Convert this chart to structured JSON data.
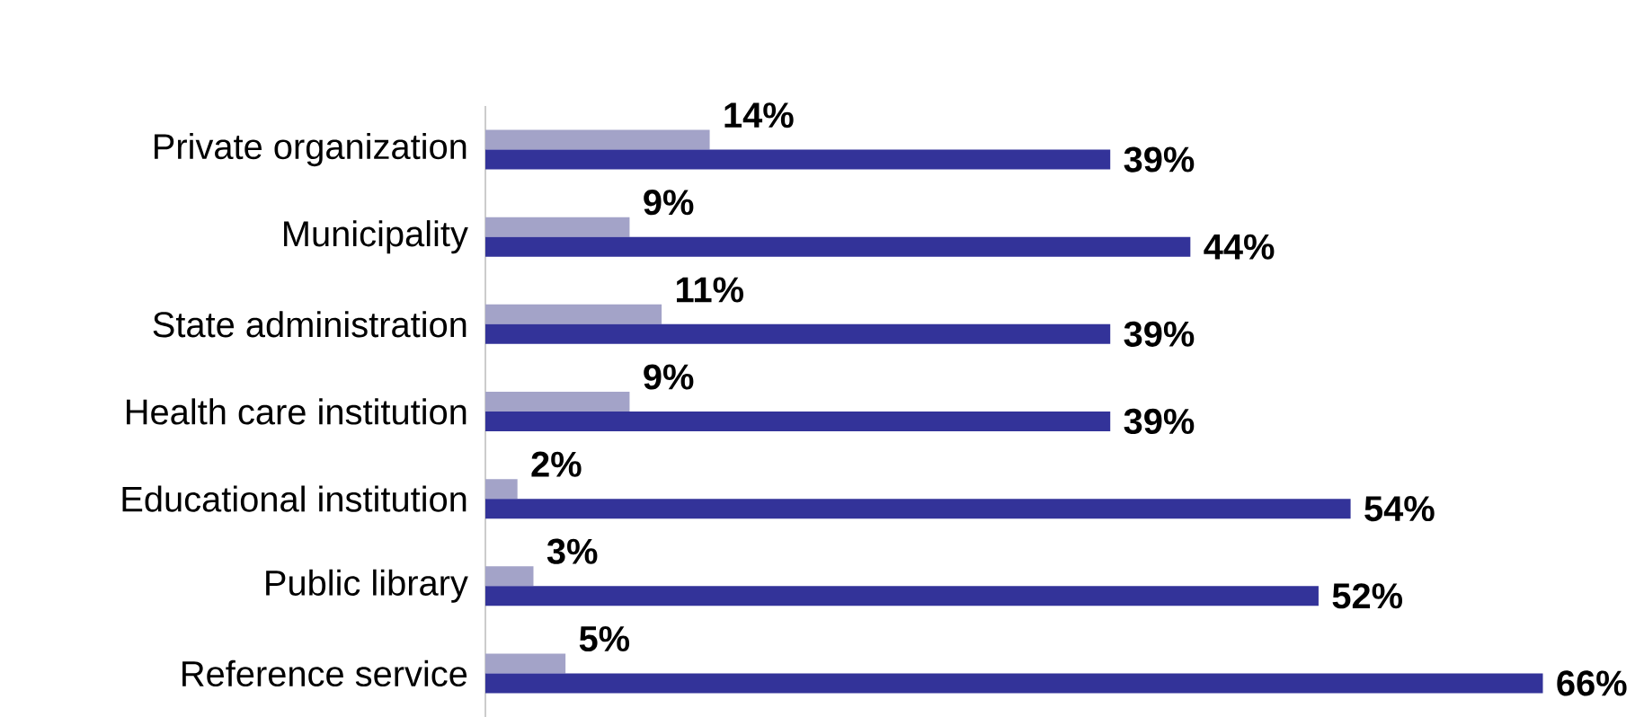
{
  "chart_data": {
    "type": "bar",
    "orientation": "horizontal",
    "categories": [
      "Private organization",
      "Municipality",
      "State administration",
      "Health care institution",
      "Educational institution",
      "Public library",
      "Reference service"
    ],
    "series": [
      {
        "color": "#a3a3c8",
        "values": [
          14,
          9,
          11,
          9,
          2,
          3,
          5
        ],
        "value_labels": [
          "14%",
          "9%",
          "11%",
          "9%",
          "2%",
          "3%",
          "5%"
        ]
      },
      {
        "color": "#333399",
        "values": [
          39,
          44,
          39,
          39,
          54,
          52,
          66
        ],
        "value_labels": [
          "39%",
          "44%",
          "39%",
          "39%",
          "54%",
          "52%",
          "66%"
        ]
      }
    ]
  }
}
